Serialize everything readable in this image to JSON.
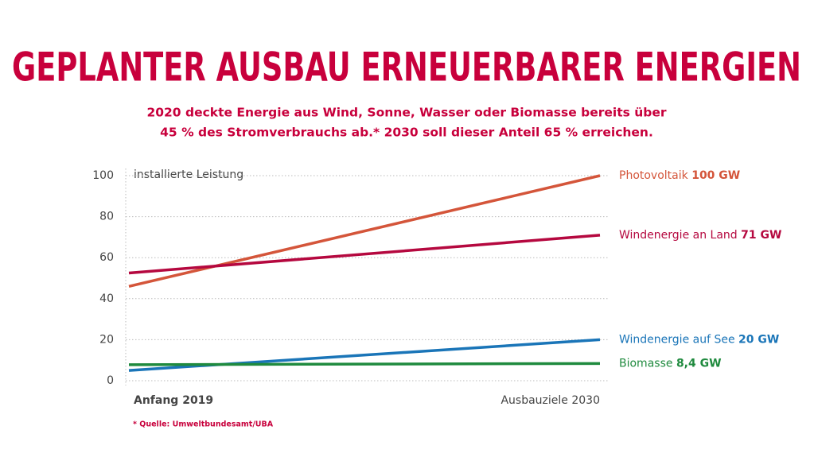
{
  "chart_data": {
    "type": "line",
    "title": "GEPLANTER AUSBAU ERNEUERBARER ENERGIEN",
    "subtitle": [
      "2020 deckte Energie aus Wind, Sonne, Wasser oder Biomasse bereits über",
      "45 % des Stromverbrauchs ab.* 2030 soll dieser Anteil 65 % erreichen."
    ],
    "y_label": "installierte Leistung",
    "categories": [
      "Anfang 2019",
      "Ausbauziele 2030"
    ],
    "series": [
      {
        "name": "Photovoltaik",
        "color": "#d4553a",
        "values": [
          46,
          100
        ],
        "value_labels": [
          null,
          "100 GW"
        ]
      },
      {
        "name": "Windenergie an Land",
        "color": "#b5083f",
        "values": [
          52.5,
          71
        ],
        "value_labels": [
          null,
          "71 GW"
        ]
      },
      {
        "name": "Windenergie auf See",
        "color": "#1a75b8",
        "values": [
          5,
          20
        ],
        "value_labels": [
          null,
          "20 GW"
        ]
      },
      {
        "name": "Biomasse",
        "color": "#1f8a3e",
        "values": [
          7.8,
          8.4
        ],
        "value_labels": [
          null,
          "8,4 GW"
        ]
      }
    ],
    "ylim": [
      0,
      100
    ],
    "yticks": [
      0,
      20,
      40,
      60,
      80,
      100
    ],
    "grid": true,
    "footnote": "* Quelle: Umweltbundesamt/UBA"
  }
}
